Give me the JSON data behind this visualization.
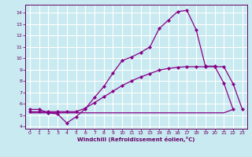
{
  "xlabel": "Windchill (Refroidissement éolien,°C)",
  "bg_color": "#c8eaf0",
  "grid_color": "#ffffff",
  "line_color": "#880088",
  "xlim": [
    -0.5,
    23.5
  ],
  "ylim": [
    3.8,
    14.7
  ],
  "yticks": [
    4,
    5,
    6,
    7,
    8,
    9,
    10,
    11,
    12,
    13,
    14
  ],
  "xticks": [
    0,
    1,
    2,
    3,
    4,
    5,
    6,
    7,
    8,
    9,
    10,
    11,
    12,
    13,
    14,
    15,
    16,
    17,
    18,
    19,
    20,
    21,
    22,
    23
  ],
  "line1_x": [
    0,
    1,
    2,
    3,
    4,
    5,
    6,
    7,
    8,
    9,
    10,
    11,
    12,
    13,
    14,
    15,
    16,
    17,
    18,
    19,
    20,
    21,
    22
  ],
  "line1_y": [
    5.5,
    5.5,
    5.2,
    5.1,
    4.3,
    4.85,
    5.55,
    6.55,
    7.5,
    8.7,
    9.8,
    10.1,
    10.5,
    11.0,
    12.6,
    13.35,
    14.1,
    14.2,
    12.5,
    9.3,
    9.3,
    7.8,
    5.5
  ],
  "line2_x": [
    0,
    1,
    2,
    3,
    4,
    5,
    6,
    7,
    8,
    9,
    10,
    11,
    12,
    13,
    14,
    15,
    16,
    17,
    18,
    19,
    20,
    21,
    22,
    23
  ],
  "line2_y": [
    5.3,
    5.3,
    5.3,
    5.3,
    5.3,
    5.3,
    5.6,
    6.1,
    6.6,
    7.1,
    7.6,
    8.0,
    8.35,
    8.65,
    8.95,
    9.1,
    9.2,
    9.25,
    9.25,
    9.25,
    9.25,
    9.25,
    7.75,
    5.5
  ],
  "line3_x": [
    0,
    1,
    2,
    3,
    4,
    5,
    6,
    7,
    8,
    9,
    10,
    11,
    12,
    13,
    14,
    15,
    16,
    17,
    18,
    19,
    20,
    21,
    22
  ],
  "line3_y": [
    5.2,
    5.2,
    5.2,
    5.2,
    5.2,
    5.2,
    5.2,
    5.2,
    5.2,
    5.2,
    5.2,
    5.2,
    5.2,
    5.2,
    5.2,
    5.2,
    5.2,
    5.2,
    5.2,
    5.2,
    5.2,
    5.2,
    5.5
  ]
}
